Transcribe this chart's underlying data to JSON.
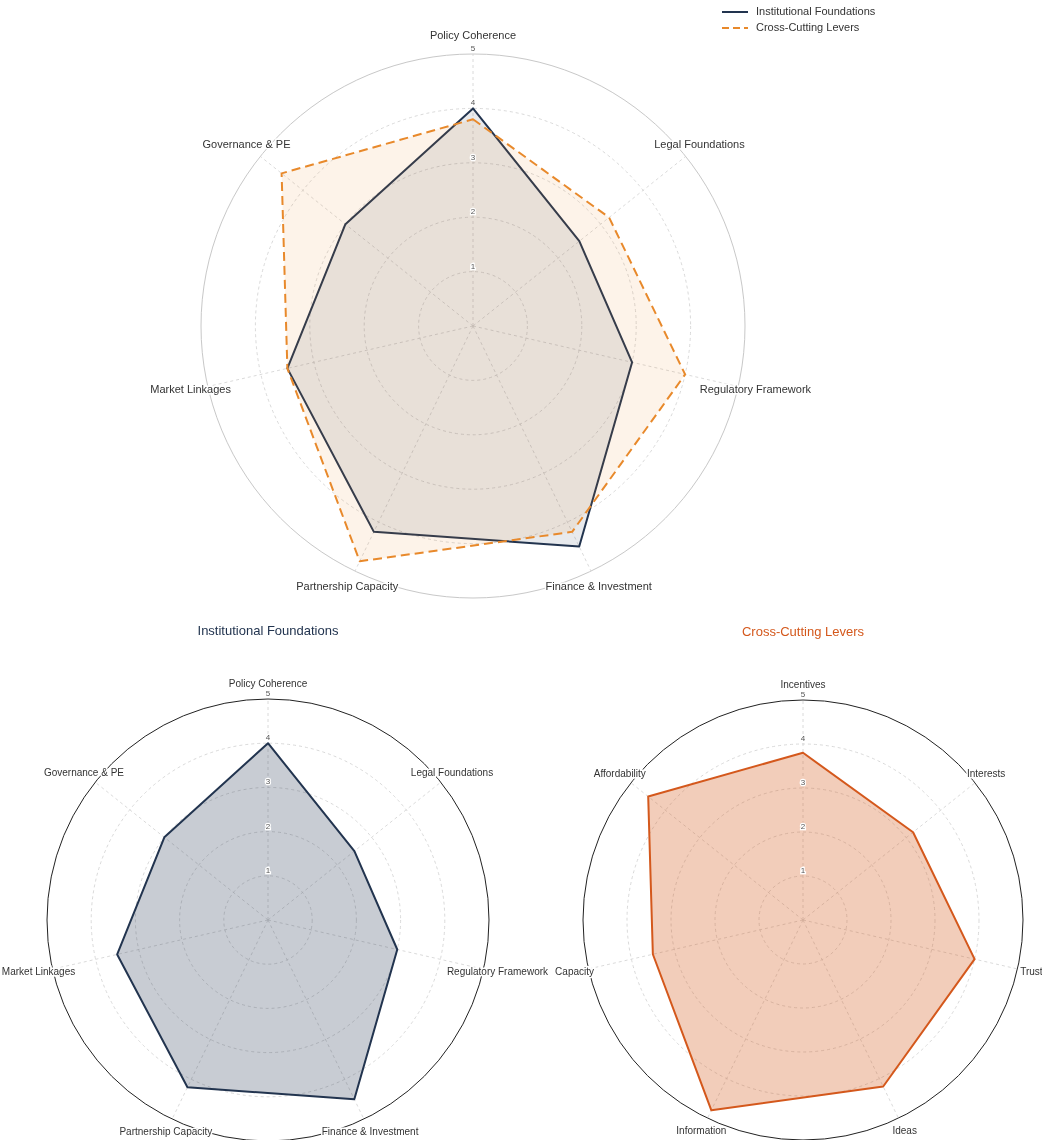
{
  "chart_data": [
    {
      "type": "radar",
      "categories": [
        "Policy Coherence",
        "Legal Foundations",
        "Regulatory Framework",
        "Finance & Investment",
        "Partnership Capacity",
        "Market Linkages",
        "Governance & PE"
      ],
      "series": [
        {
          "name": "Institutional Foundations",
          "color": "#22344f",
          "values": [
            4.0,
            2.5,
            3.0,
            4.5,
            4.2,
            3.5,
            3.0
          ],
          "line_style": "solid"
        },
        {
          "name": "Cross-Cutting Levers",
          "color": "#e8892b",
          "values": [
            3.8,
            3.2,
            4.0,
            4.2,
            4.8,
            3.5,
            4.5
          ],
          "line_style": "dashed"
        }
      ],
      "ylim": [
        0,
        5
      ],
      "yticks": [
        1,
        2,
        3,
        4,
        5
      ],
      "grid": true,
      "legend": "top right"
    },
    {
      "type": "radar",
      "title": "Institutional Foundations",
      "categories": [
        "Policy Coherence",
        "Legal Foundations",
        "Regulatory Framework",
        "Finance & Investment",
        "Partnership Capacity",
        "Market Linkages",
        "Governance & PE"
      ],
      "series": [
        {
          "color": "#22344f",
          "values": [
            4.0,
            2.5,
            3.0,
            4.5,
            4.2,
            3.5,
            3.0
          ]
        }
      ],
      "ylim": [
        0,
        5
      ],
      "yticks": [
        1,
        2,
        3,
        4,
        5
      ],
      "grid": true
    },
    {
      "type": "radar",
      "title": "Cross-Cutting Levers",
      "categories": [
        "Incentives",
        "Interests",
        "Trust",
        "Ideas",
        "Information",
        "Capacity",
        "Affordability"
      ],
      "series": [
        {
          "color": "#d4581c",
          "values": [
            3.8,
            3.2,
            4.0,
            4.2,
            4.8,
            3.5,
            4.5
          ]
        }
      ],
      "ylim": [
        0,
        5
      ],
      "yticks": [
        1,
        2,
        3,
        4,
        5
      ],
      "grid": true
    }
  ]
}
